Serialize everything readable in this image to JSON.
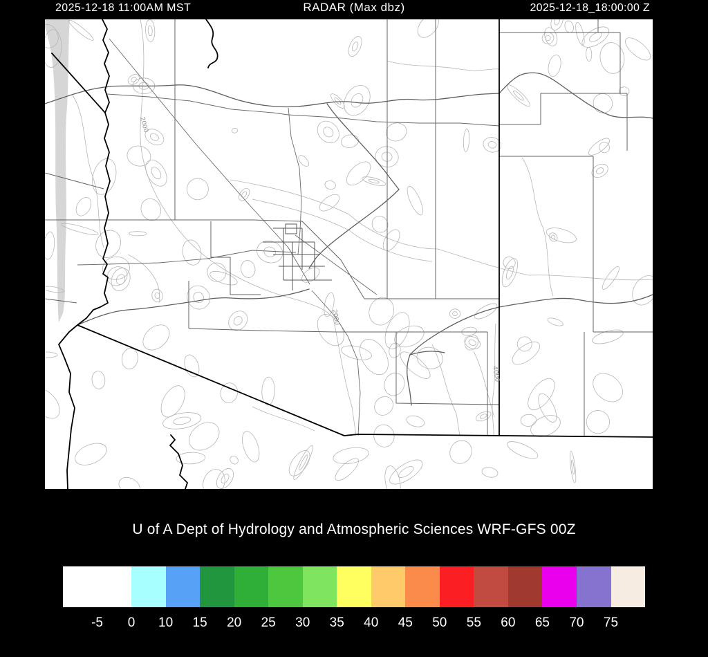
{
  "header": {
    "left_timestamp": "2025-12-18 11:00AM MST",
    "title": "RADAR (Max dbz)",
    "right_timestamp": "2025-12-18_18:00:00 Z"
  },
  "map": {
    "contour_labels": [
      "2000",
      "2000",
      "4000"
    ]
  },
  "caption": "U of A Dept of Hydrology and Atmospheric Sciences WRF-GFS 00Z",
  "colorbar": {
    "ticks": [
      "-5",
      "0",
      "10",
      "15",
      "20",
      "25",
      "30",
      "35",
      "40",
      "45",
      "50",
      "55",
      "60",
      "65",
      "70",
      "75"
    ],
    "cells": [
      {
        "color": "#ffffff",
        "span": 2
      },
      {
        "color": "#a8ffff",
        "span": 1
      },
      {
        "color": "#57a1f7",
        "span": 1
      },
      {
        "color": "#22963f",
        "span": 1
      },
      {
        "color": "#2fae38",
        "span": 1
      },
      {
        "color": "#4dc83e",
        "span": 1
      },
      {
        "color": "#80e55e",
        "span": 1
      },
      {
        "color": "#ffff60",
        "span": 1
      },
      {
        "color": "#ffca69",
        "span": 1
      },
      {
        "color": "#fb8b4a",
        "span": 1
      },
      {
        "color": "#fb1f23",
        "span": 1
      },
      {
        "color": "#c24b41",
        "span": 1
      },
      {
        "color": "#a03a2e",
        "span": 1
      },
      {
        "color": "#ea00ec",
        "span": 1
      },
      {
        "color": "#8672cf",
        "span": 1
      },
      {
        "color": "#f7ece1",
        "span": 1
      }
    ]
  }
}
